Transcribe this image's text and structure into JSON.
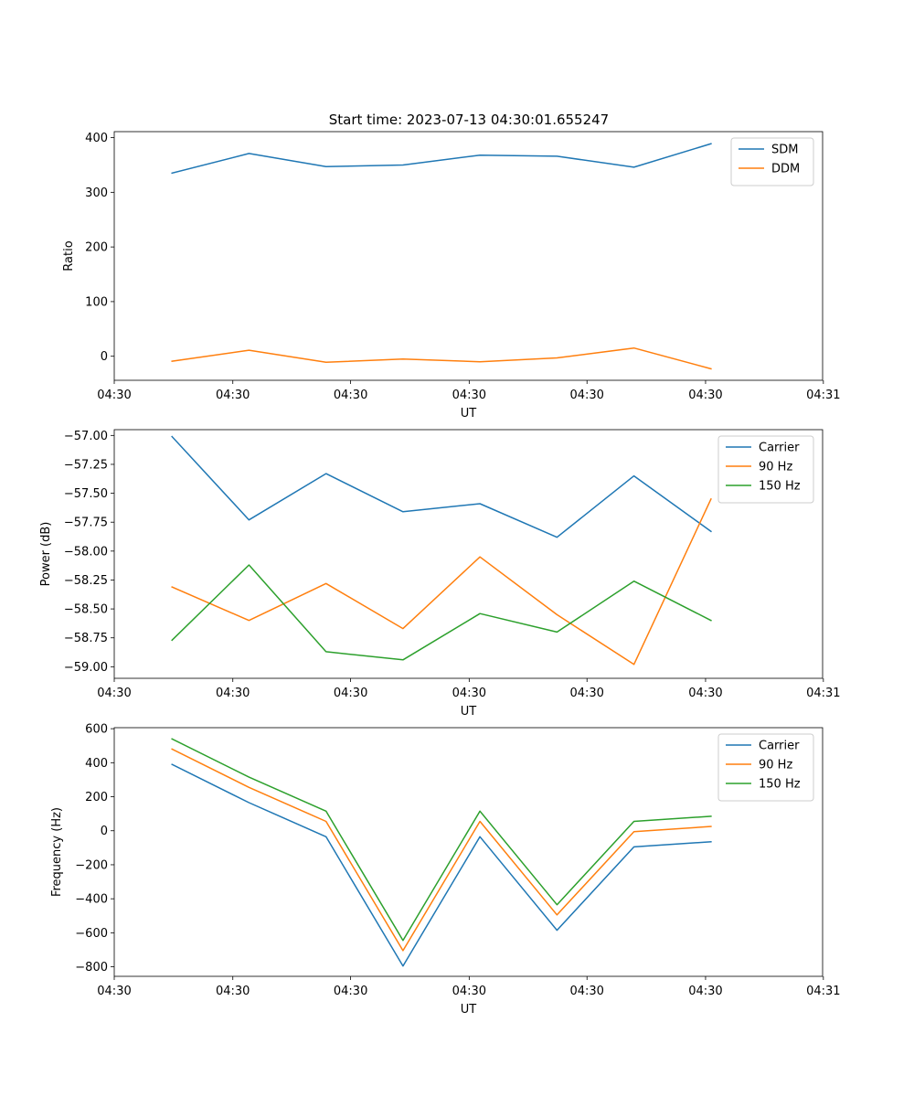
{
  "figure": {
    "title": "Start time: 2023-07-13 04:30:01.655247"
  },
  "chart_data": [
    {
      "type": "line",
      "xlabel": "UT",
      "ylabel": "Ratio",
      "x": [
        0,
        1,
        2,
        3,
        4,
        5,
        6,
        7
      ],
      "xlim": [
        -0.75,
        8.45
      ],
      "xticks": [
        -0.75,
        0.79,
        2.32,
        3.86,
        5.39,
        6.93,
        8.46
      ],
      "xtick_labels": [
        "04:30",
        "04:30",
        "04:30",
        "04:30",
        "04:30",
        "04:30",
        "04:31"
      ],
      "ylim": [
        -44,
        411
      ],
      "yticks": [
        0,
        100,
        200,
        300,
        400
      ],
      "ytick_labels": [
        "0",
        "100",
        "200",
        "300",
        "400"
      ],
      "legend_position": "top-right",
      "series": [
        {
          "name": "SDM",
          "color": "#1f77b4",
          "values": [
            335,
            371,
            347,
            350,
            368,
            366,
            346,
            389
          ]
        },
        {
          "name": "DDM",
          "color": "#ff7f0e",
          "values": [
            -9,
            11,
            -11,
            -5,
            -10,
            -3,
            15,
            -23
          ]
        }
      ]
    },
    {
      "type": "line",
      "xlabel": "UT",
      "ylabel": "Power (dB)",
      "x": [
        0,
        1,
        2,
        3,
        4,
        5,
        6,
        7
      ],
      "xlim": [
        -0.75,
        8.45
      ],
      "xticks": [
        -0.75,
        0.79,
        2.32,
        3.86,
        5.39,
        6.93,
        8.46
      ],
      "xtick_labels": [
        "04:30",
        "04:30",
        "04:30",
        "04:30",
        "04:30",
        "04:30",
        "04:31"
      ],
      "ylim": [
        -59.1,
        -56.95
      ],
      "yticks": [
        -57.0,
        -57.25,
        -57.5,
        -57.75,
        -58.0,
        -58.25,
        -58.5,
        -58.75,
        -59.0
      ],
      "ytick_labels": [
        "−57.00",
        "−57.25",
        "−57.50",
        "−57.75",
        "−58.00",
        "−58.25",
        "−58.50",
        "−58.75",
        "−59.00"
      ],
      "legend_position": "top-right",
      "series": [
        {
          "name": "Carrier",
          "color": "#1f77b4",
          "values": [
            -57.01,
            -57.73,
            -57.33,
            -57.66,
            -57.59,
            -57.88,
            -57.35,
            -57.83
          ]
        },
        {
          "name": "90 Hz",
          "color": "#ff7f0e",
          "values": [
            -58.31,
            -58.6,
            -58.28,
            -58.67,
            -58.05,
            -58.55,
            -58.98,
            -57.55
          ]
        },
        {
          "name": "150 Hz",
          "color": "#2ca02c",
          "values": [
            -58.77,
            -58.12,
            -58.87,
            -58.94,
            -58.54,
            -58.7,
            -58.26,
            -58.6
          ]
        }
      ]
    },
    {
      "type": "line",
      "xlabel": "UT",
      "ylabel": "Frequency (Hz)",
      "x": [
        0,
        1,
        2,
        3,
        4,
        5,
        6,
        7
      ],
      "xlim": [
        -0.75,
        8.45
      ],
      "xticks": [
        -0.75,
        0.79,
        2.32,
        3.86,
        5.39,
        6.93,
        8.46
      ],
      "xtick_labels": [
        "04:30",
        "04:30",
        "04:30",
        "04:30",
        "04:30",
        "04:30",
        "04:31"
      ],
      "ylim": [
        -856,
        606
      ],
      "yticks": [
        600,
        400,
        200,
        0,
        -200,
        -400,
        -600,
        -800
      ],
      "ytick_labels": [
        "600",
        "400",
        "200",
        "0",
        "−200",
        "−400",
        "−600",
        "−800"
      ],
      "legend_position": "top-right",
      "series": [
        {
          "name": "Carrier",
          "color": "#1f77b4",
          "values": [
            390,
            165,
            -35,
            -795,
            -35,
            -585,
            -95,
            -65
          ]
        },
        {
          "name": "90 Hz",
          "color": "#ff7f0e",
          "values": [
            480,
            255,
            55,
            -705,
            55,
            -495,
            -5,
            25
          ]
        },
        {
          "name": "150 Hz",
          "color": "#2ca02c",
          "values": [
            540,
            315,
            115,
            -645,
            115,
            -435,
            55,
            85
          ]
        }
      ]
    }
  ]
}
